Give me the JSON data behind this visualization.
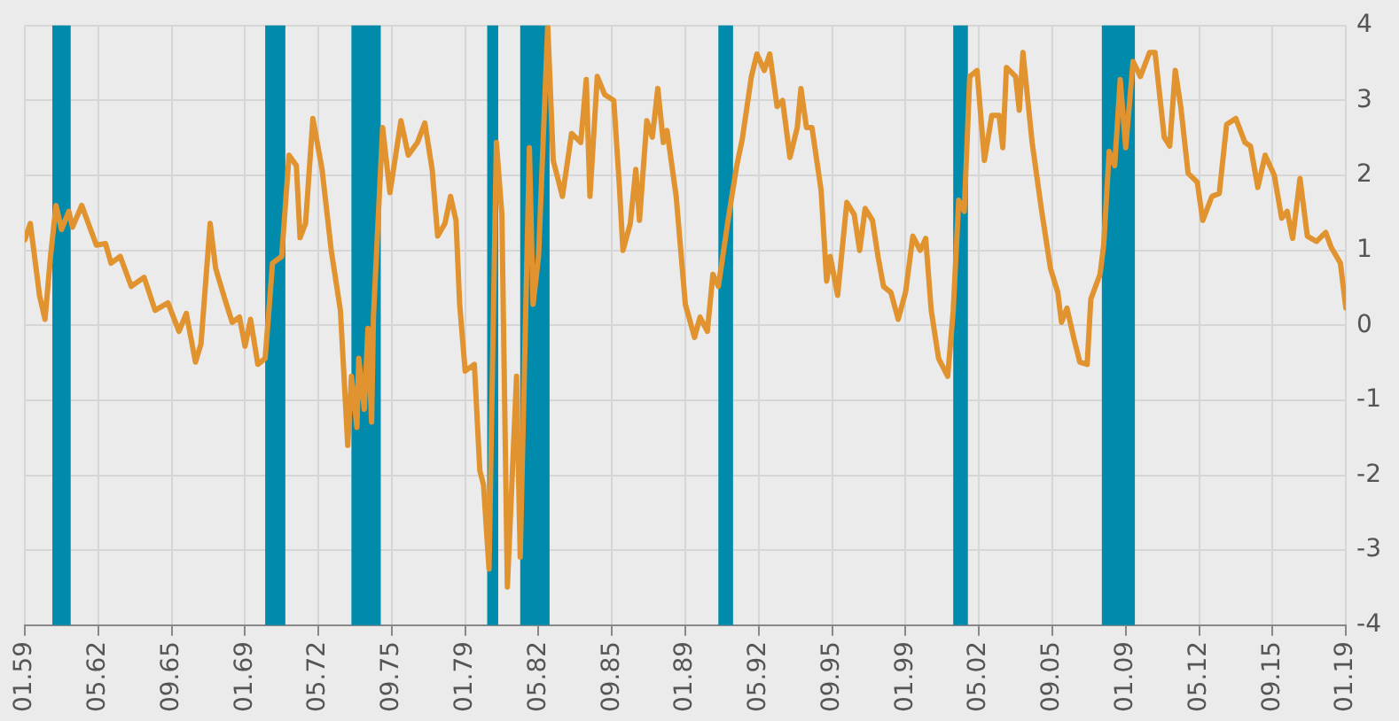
{
  "chart_data": {
    "type": "line",
    "grid": true,
    "legend": false,
    "marker": "none",
    "line_style": "solid",
    "xlim": [
      "1959-01",
      "2019-01"
    ],
    "xticks": [
      {
        "value": "1959-01",
        "label": "01.59"
      },
      {
        "value": "1962-05",
        "label": "05.62"
      },
      {
        "value": "1965-09",
        "label": "09.65"
      },
      {
        "value": "1969-01",
        "label": "01.69"
      },
      {
        "value": "1972-05",
        "label": "05.72"
      },
      {
        "value": "1975-09",
        "label": "09.75"
      },
      {
        "value": "1979-01",
        "label": "01.79"
      },
      {
        "value": "1982-05",
        "label": "05.82"
      },
      {
        "value": "1985-09",
        "label": "09.85"
      },
      {
        "value": "1989-01",
        "label": "01.89"
      },
      {
        "value": "1992-05",
        "label": "05.92"
      },
      {
        "value": "1995-09",
        "label": "09.95"
      },
      {
        "value": "1999-01",
        "label": "01.99"
      },
      {
        "value": "2002-05",
        "label": "05.02"
      },
      {
        "value": "2005-09",
        "label": "09.05"
      },
      {
        "value": "2009-01",
        "label": "01.09"
      },
      {
        "value": "2012-05",
        "label": "05.12"
      },
      {
        "value": "2015-09",
        "label": "09.15"
      },
      {
        "value": "2019-01",
        "label": "01.19"
      }
    ],
    "ylim": [
      -4,
      4
    ],
    "yticks": [
      -4,
      -3,
      -2,
      -1,
      0,
      1,
      2,
      3,
      4
    ],
    "bands": [
      {
        "axis": "x",
        "from": "1960-04",
        "to": "1961-02",
        "color": "#008bad"
      },
      {
        "axis": "x",
        "from": "1969-12",
        "to": "1970-11",
        "color": "#008bad"
      },
      {
        "axis": "x",
        "from": "1973-11",
        "to": "1975-03",
        "color": "#008bad"
      },
      {
        "axis": "x",
        "from": "1980-01",
        "to": "1980-07",
        "color": "#008bad"
      },
      {
        "axis": "x",
        "from": "1981-07",
        "to": "1982-11",
        "color": "#008bad"
      },
      {
        "axis": "x",
        "from": "1990-07",
        "to": "1991-03",
        "color": "#008bad"
      },
      {
        "axis": "x",
        "from": "2001-03",
        "to": "2001-11",
        "color": "#008bad"
      },
      {
        "axis": "x",
        "from": "2007-12",
        "to": "2009-06",
        "color": "#008bad"
      }
    ],
    "series": [
      {
        "color": "#e0932f",
        "x": [
          "1959-01",
          "1959-04",
          "1959-09",
          "1959-12",
          "1960-03",
          "1960-06",
          "1960-09",
          "1961-01",
          "1961-03",
          "1961-08",
          "1962-04",
          "1962-09",
          "1962-12",
          "1963-05",
          "1963-11",
          "1964-06",
          "1964-12",
          "1965-07",
          "1966-01",
          "1966-05",
          "1966-10",
          "1967-01",
          "1967-06",
          "1967-09",
          "1968-02",
          "1968-06",
          "1968-10",
          "1969-01",
          "1969-04",
          "1969-08",
          "1969-12",
          "1970-04",
          "1970-09",
          "1971-01",
          "1971-05",
          "1971-07",
          "1971-10",
          "1972-02",
          "1972-07",
          "1972-12",
          "1973-05",
          "1973-09",
          "1973-11",
          "1974-02",
          "1974-03",
          "1974-06",
          "1974-08",
          "1974-10",
          "1974-11",
          "1975-04",
          "1975-08",
          "1976-02",
          "1976-06",
          "1976-11",
          "1977-03",
          "1977-07",
          "1977-10",
          "1978-02",
          "1978-05",
          "1978-08",
          "1978-10",
          "1979-01",
          "1979-06",
          "1979-09",
          "1979-11",
          "1980-02",
          "1980-06",
          "1980-09",
          "1980-12",
          "1981-05",
          "1981-07",
          "1981-12",
          "1982-02",
          "1982-05",
          "1982-10",
          "1983-01",
          "1983-06",
          "1983-11",
          "1984-04",
          "1984-07",
          "1984-09",
          "1985-01",
          "1985-05",
          "1985-10",
          "1986-01",
          "1986-03",
          "1986-07",
          "1986-10",
          "1986-12",
          "1987-04",
          "1987-07",
          "1987-10",
          "1988-01",
          "1988-03",
          "1988-08",
          "1989-01",
          "1989-06",
          "1989-09",
          "1990-01",
          "1990-04",
          "1990-07",
          "1990-12",
          "1991-05",
          "1991-08",
          "1992-01",
          "1992-04",
          "1992-08",
          "1992-11",
          "1993-03",
          "1993-06",
          "1993-10",
          "1994-02",
          "1994-04",
          "1994-07",
          "1994-10",
          "1995-03",
          "1995-06",
          "1995-08",
          "1995-12",
          "1996-05",
          "1996-09",
          "1996-12",
          "1997-03",
          "1997-07",
          "1997-10",
          "1998-01",
          "1998-05",
          "1998-09",
          "1999-01",
          "1999-05",
          "1999-09",
          "1999-12",
          "2000-03",
          "2000-07",
          "2000-12",
          "2001-03",
          "2001-06",
          "2001-09",
          "2001-12",
          "2002-04",
          "2002-08",
          "2002-12",
          "2003-04",
          "2003-06",
          "2003-08",
          "2004-01",
          "2004-03",
          "2004-05",
          "2004-10",
          "2005-03",
          "2005-08",
          "2005-12",
          "2006-02",
          "2006-05",
          "2006-09",
          "2006-12",
          "2007-04",
          "2007-06",
          "2007-11",
          "2008-01",
          "2008-04",
          "2008-07",
          "2008-10",
          "2009-01",
          "2009-05",
          "2009-09",
          "2010-02",
          "2010-05",
          "2010-10",
          "2011-01",
          "2011-04",
          "2011-07",
          "2011-11",
          "2012-04",
          "2012-07",
          "2012-12",
          "2013-04",
          "2013-08",
          "2014-01",
          "2014-06",
          "2014-09",
          "2015-01",
          "2015-05",
          "2015-10",
          "2016-02",
          "2016-05",
          "2016-08",
          "2016-12",
          "2017-04",
          "2017-09",
          "2018-02",
          "2018-05",
          "2018-10",
          "2019-01"
        ],
        "values": [
          1.14,
          1.36,
          0.4,
          0.08,
          0.92,
          1.6,
          1.28,
          1.52,
          1.31,
          1.6,
          1.07,
          1.09,
          0.83,
          0.92,
          0.52,
          0.64,
          0.2,
          0.3,
          -0.08,
          0.16,
          -0.49,
          -0.25,
          1.36,
          0.76,
          0.35,
          0.04,
          0.11,
          -0.28,
          0.08,
          -0.52,
          -0.44,
          0.83,
          0.92,
          2.27,
          2.13,
          1.17,
          1.36,
          2.76,
          2.08,
          1.0,
          0.2,
          -1.6,
          -0.68,
          -1.36,
          -0.44,
          -1.12,
          -0.04,
          -1.29,
          0.11,
          2.64,
          1.77,
          2.73,
          2.27,
          2.44,
          2.7,
          2.08,
          1.19,
          1.36,
          1.72,
          1.4,
          0.28,
          -0.61,
          -0.52,
          -1.94,
          -2.13,
          -3.25,
          2.44,
          1.48,
          -3.49,
          -0.68,
          -3.09,
          2.37,
          0.28,
          0.92,
          4.0,
          2.2,
          1.72,
          2.56,
          2.44,
          3.28,
          1.72,
          3.32,
          3.08,
          3.0,
          1.88,
          1.0,
          1.36,
          2.08,
          1.4,
          2.73,
          2.51,
          3.16,
          2.44,
          2.6,
          1.72,
          0.28,
          -0.16,
          0.11,
          -0.08,
          0.68,
          0.52,
          1.36,
          2.13,
          2.48,
          3.32,
          3.62,
          3.4,
          3.62,
          2.92,
          3.0,
          2.24,
          2.64,
          3.16,
          2.64,
          2.64,
          1.8,
          0.59,
          0.92,
          0.4,
          1.64,
          1.48,
          1.0,
          1.56,
          1.4,
          0.92,
          0.52,
          0.44,
          0.08,
          0.44,
          1.19,
          1.0,
          1.16,
          0.2,
          -0.44,
          -0.68,
          0.2,
          1.67,
          1.52,
          3.32,
          3.4,
          2.2,
          2.8,
          2.8,
          2.37,
          3.44,
          3.32,
          2.87,
          3.64,
          2.44,
          1.56,
          0.76,
          0.44,
          0.04,
          0.23,
          -0.2,
          -0.49,
          -0.52,
          0.35,
          0.68,
          1.07,
          2.32,
          2.13,
          3.28,
          2.37,
          3.52,
          3.32,
          3.64,
          3.64,
          2.51,
          2.39,
          3.4,
          2.92,
          2.03,
          1.91,
          1.4,
          1.72,
          1.76,
          2.68,
          2.76,
          2.44,
          2.39,
          1.84,
          2.27,
          2.0,
          1.43,
          1.52,
          1.16,
          1.96,
          1.19,
          1.12,
          1.24,
          1.04,
          0.83,
          0.23
        ]
      }
    ]
  }
}
